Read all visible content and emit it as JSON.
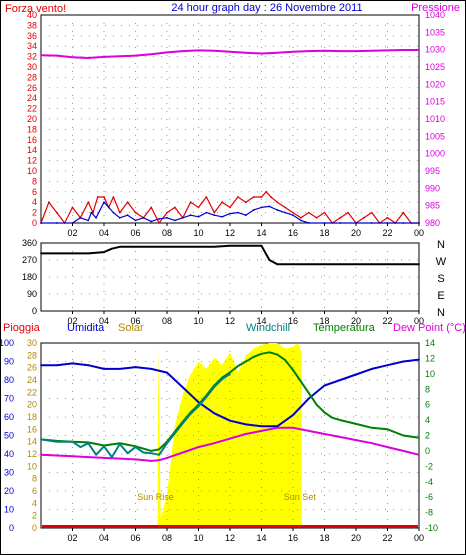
{
  "header": {
    "left_label": "Forza vento!",
    "title": "24 hour graph day : 26 Novembre 2011",
    "right_label": "Pressione"
  },
  "time_ticks": [
    "02",
    "04",
    "06",
    "08",
    "10",
    "12",
    "14",
    "16",
    "18",
    "20",
    "22",
    "00"
  ],
  "colors": {
    "red": "#e00000",
    "blue": "#0000cc",
    "magenta": "#dd00dd",
    "olive": "#b08a00",
    "teal": "#008080",
    "green": "#008000",
    "yellow": "#ffff00",
    "dark": "#000000"
  },
  "chart_data": [
    {
      "type": "line",
      "left_axis": {
        "ylim": [
          0,
          40
        ],
        "ticks": [
          "0",
          "2",
          "4",
          "6",
          "8",
          "10",
          "12",
          "14",
          "16",
          "18",
          "20",
          "22",
          "24",
          "26",
          "28",
          "30",
          "32",
          "34",
          "36",
          "38",
          "40"
        ]
      },
      "right_axis": {
        "ylim": [
          980,
          1040
        ],
        "ticks": [
          "980",
          "985",
          "990",
          "995",
          "1000",
          "1005",
          "1010",
          "1015",
          "1020",
          "1025",
          "1030",
          "1035",
          "1040"
        ]
      },
      "xlim": [
        0,
        24
      ],
      "grid": true,
      "series": [
        {
          "name": "Pressione",
          "axis": "right",
          "color": "magenta",
          "x": [
            0,
            1,
            2,
            3,
            4,
            5,
            6,
            7,
            8,
            9,
            10,
            11,
            12,
            13,
            14,
            15,
            16,
            17,
            18,
            19,
            20,
            21,
            22,
            23,
            24
          ],
          "y": [
            1028.4,
            1028.3,
            1027.8,
            1027.6,
            1027.9,
            1028.1,
            1028.3,
            1028.7,
            1029.2,
            1029.6,
            1029.8,
            1029.7,
            1029.4,
            1029.1,
            1028.9,
            1029.1,
            1029.4,
            1029.6,
            1029.7,
            1029.6,
            1029.6,
            1029.7,
            1029.8,
            1029.9,
            1029.9
          ]
        },
        {
          "name": "Forza vento",
          "axis": "left",
          "color": "red",
          "x": [
            0,
            0.5,
            1,
            1.5,
            2,
            2.5,
            3,
            3.3,
            3.6,
            4,
            4.3,
            4.6,
            5,
            5.5,
            6,
            6.5,
            7,
            7.5,
            8,
            8.5,
            9,
            9.5,
            10,
            10.5,
            11,
            11.5,
            12,
            12.5,
            13,
            13.5,
            14,
            14.3,
            14.6,
            15,
            15.5,
            16,
            16.5,
            17,
            17.5,
            18,
            18.5,
            19,
            19.5,
            20,
            20.5,
            21,
            21.5,
            22,
            22.5,
            23,
            23.5,
            24
          ],
          "y": [
            0,
            4,
            2,
            0,
            3,
            1,
            4,
            2,
            5,
            5,
            3,
            5,
            2,
            4,
            2,
            1,
            3,
            0,
            2,
            3,
            1,
            4,
            3,
            5,
            2,
            4,
            3,
            5,
            4,
            5,
            5,
            6,
            5,
            4,
            3,
            2,
            1,
            2,
            1,
            2,
            0,
            1,
            2,
            0,
            1,
            2,
            0,
            1,
            0,
            2,
            0,
            0
          ]
        },
        {
          "name": "Raffica",
          "axis": "left",
          "color": "blue",
          "x": [
            0,
            1,
            2,
            2.5,
            3,
            3.2,
            3.5,
            4,
            4.3,
            4.6,
            5,
            5.5,
            6,
            6.5,
            7,
            7.5,
            8,
            8.5,
            9,
            9.5,
            10,
            10.5,
            11,
            11.5,
            12,
            12.5,
            13,
            13.5,
            14,
            14.5,
            15,
            15.5,
            16,
            16.5,
            17,
            18,
            19,
            20,
            21,
            22,
            23,
            24
          ],
          "y": [
            0,
            0,
            0,
            1,
            0.5,
            2,
            1,
            4,
            3,
            2,
            1,
            1.5,
            0.5,
            1,
            0.3,
            0.8,
            1,
            0.5,
            1,
            1.5,
            1.2,
            2,
            1.5,
            1.2,
            1.8,
            2,
            1.5,
            2.5,
            3,
            3.2,
            2.5,
            2,
            1.5,
            0.5,
            0,
            0,
            0,
            0,
            0,
            0,
            0,
            0
          ]
        }
      ]
    },
    {
      "type": "line",
      "left_axis": {
        "ylim": [
          0,
          360
        ],
        "ticks": [
          "0",
          "90",
          "180",
          "270",
          "360"
        ]
      },
      "right_labels": [
        "N",
        "W",
        "S",
        "E",
        "N"
      ],
      "xlim": [
        0,
        24
      ],
      "grid": true,
      "series": [
        {
          "name": "Direzione vento",
          "axis": "left",
          "color": "dark",
          "x": [
            0,
            1,
            2,
            3,
            4,
            4.5,
            5,
            6,
            7,
            8,
            9,
            10,
            11,
            12,
            13,
            14,
            14.5,
            15,
            16,
            17,
            18,
            19,
            20,
            21,
            22,
            23,
            24
          ],
          "y": [
            305,
            305,
            305,
            305,
            312,
            330,
            340,
            340,
            340,
            340,
            340,
            340,
            340,
            345,
            345,
            345,
            270,
            248,
            248,
            248,
            248,
            248,
            248,
            248,
            248,
            248,
            248
          ]
        }
      ]
    },
    {
      "type": "line",
      "legend": [
        "Pioggia",
        "Umidita",
        "Solar",
        "Windchill",
        "Temperatura",
        "Dew Point (°C)"
      ],
      "annotations": [
        "Sun Rise",
        "Sun Set"
      ],
      "axis_pioggia": {
        "ylim": [
          0,
          100
        ],
        "ticks": [
          "0",
          "10",
          "20",
          "30",
          "40",
          "50",
          "60",
          "70",
          "80",
          "90",
          "100"
        ]
      },
      "axis_umidita": {
        "ylim": [
          0,
          30
        ],
        "ticks": [
          "0",
          "2",
          "4",
          "6",
          "8",
          "10",
          "12",
          "14",
          "16",
          "18",
          "20",
          "22",
          "24",
          "26",
          "28",
          "30"
        ]
      },
      "right_axis": {
        "ylim": [
          -10,
          14
        ],
        "ticks": [
          "-10",
          "-8",
          "-6",
          "-4",
          "-2",
          "0",
          "2",
          "4",
          "6",
          "8",
          "10",
          "12",
          "14"
        ]
      },
      "xlim": [
        0,
        24
      ],
      "grid": true,
      "series": [
        {
          "name": "Solar",
          "axis": "pioggia",
          "color": "yellow",
          "fill": true,
          "x": [
            7.4,
            7.45,
            7.6,
            8,
            8.5,
            9,
            9.5,
            10,
            10.5,
            11,
            11.5,
            12,
            12.5,
            13,
            13.5,
            14,
            14.5,
            15,
            15.5,
            16,
            16.3,
            16.55,
            16.56
          ],
          "y": [
            0,
            100,
            5,
            18,
            55,
            72,
            83,
            90,
            86,
            92,
            88,
            95,
            84,
            93,
            97,
            99,
            100,
            100,
            97,
            98,
            100,
            95,
            0
          ]
        },
        {
          "name": "Umidita",
          "axis": "pioggia",
          "color": "blue",
          "x": [
            0,
            1,
            2,
            3,
            4,
            5,
            6,
            7,
            8,
            9,
            10,
            11,
            12,
            13,
            14,
            15,
            16,
            17,
            18,
            19,
            20,
            21,
            22,
            23,
            24
          ],
          "y": [
            88,
            88,
            89,
            88,
            86,
            86,
            87,
            86,
            84,
            76,
            68,
            62,
            58,
            56,
            55,
            55,
            61,
            70,
            77,
            80,
            83,
            86,
            88,
            90,
            91
          ]
        },
        {
          "name": "Temperatura",
          "axis": "right",
          "color": "green",
          "x": [
            0,
            1,
            2,
            3,
            4,
            5,
            6,
            7,
            7.5,
            8,
            8.5,
            9,
            9.5,
            10,
            10.5,
            11,
            11.5,
            12,
            12.5,
            13,
            13.5,
            14,
            14.5,
            15,
            15.5,
            16,
            16.5,
            17,
            17.5,
            18,
            18.5,
            19,
            20,
            21,
            22,
            23,
            24
          ],
          "y": [
            1.5,
            1.3,
            1.2,
            1.1,
            0.7,
            1.0,
            0.6,
            0.0,
            0.2,
            1.2,
            2.5,
            3.8,
            5.0,
            6.0,
            7.2,
            8.5,
            9.5,
            10.2,
            11.0,
            11.6,
            12.2,
            12.6,
            12.8,
            12.5,
            11.8,
            10.5,
            9.0,
            7.5,
            6.0,
            5.0,
            4.3,
            4.0,
            3.5,
            3.0,
            2.8,
            2.0,
            1.7
          ]
        },
        {
          "name": "Dew Point",
          "axis": "right",
          "color": "magenta",
          "x": [
            0,
            1,
            2,
            3,
            4,
            5,
            6,
            7,
            7.5,
            8,
            9,
            10,
            11,
            12,
            13,
            14,
            15,
            16,
            17,
            18,
            19,
            20,
            21,
            22,
            23,
            24
          ],
          "y": [
            -0.5,
            -0.6,
            -0.7,
            -0.8,
            -0.9,
            -1.0,
            -1.1,
            -1.3,
            -1.2,
            -0.9,
            -0.2,
            0.5,
            1.0,
            1.6,
            2.2,
            2.6,
            3.0,
            3.0,
            2.6,
            2.2,
            1.8,
            1.4,
            1.0,
            0.5,
            0.0,
            -0.5
          ]
        },
        {
          "name": "Windchill",
          "axis": "right",
          "color": "teal",
          "x": [
            0,
            1,
            2,
            2.5,
            3,
            3.5,
            4,
            4.5,
            5,
            5.5,
            6,
            6.5,
            7,
            7.5,
            8,
            8.5,
            9,
            9.5,
            10,
            10.5,
            11,
            11.5,
            12
          ],
          "y": [
            1.5,
            1.2,
            1.2,
            0.5,
            1.0,
            -0.5,
            0.6,
            -0.8,
            0.9,
            -0.3,
            0.5,
            -0.2,
            -0.3,
            -0.5,
            1.0,
            2.3,
            3.6,
            4.8,
            5.8,
            7.0,
            8.3,
            9.3,
            10.0
          ]
        },
        {
          "name": "Pioggia",
          "axis": "pioggia",
          "color": "red",
          "x": [
            0,
            24
          ],
          "y": [
            0,
            0
          ]
        }
      ]
    }
  ]
}
